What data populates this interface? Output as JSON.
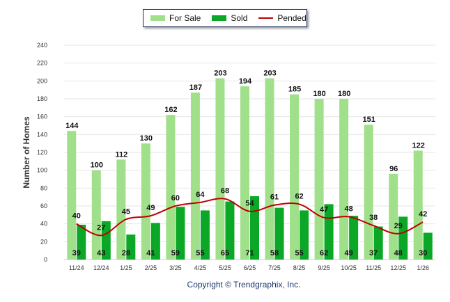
{
  "chart_data": {
    "type": "bar",
    "categories": [
      "11/24",
      "12/24",
      "1/25",
      "2/25",
      "3/25",
      "4/25",
      "5/25",
      "6/25",
      "7/25",
      "8/25",
      "9/25",
      "10/25",
      "11/25",
      "12/25",
      "1/26"
    ],
    "series": [
      {
        "name": "For Sale",
        "kind": "bar",
        "color": "#a0e08a",
        "values": [
          144,
          100,
          112,
          130,
          162,
          187,
          203,
          194,
          203,
          185,
          180,
          180,
          151,
          96,
          122
        ]
      },
      {
        "name": "Sold",
        "kind": "bar",
        "color": "#0aa826",
        "values": [
          39,
          43,
          28,
          41,
          59,
          55,
          65,
          71,
          58,
          55,
          62,
          49,
          37,
          48,
          30
        ]
      },
      {
        "name": "Pended",
        "kind": "line",
        "color": "#c00000",
        "values": [
          40,
          27,
          45,
          49,
          60,
          64,
          68,
          54,
          61,
          62,
          47,
          48,
          38,
          29,
          42
        ]
      }
    ],
    "ylabel": "Number of Homes",
    "xlabel": "",
    "ylim": [
      0,
      240
    ],
    "yticks": [
      0,
      20,
      40,
      60,
      80,
      100,
      120,
      140,
      160,
      180,
      200,
      220,
      240
    ],
    "grid": true,
    "legend_position": "top-center"
  },
  "footer": {
    "copyright": "Copyright © Trendgraphix, Inc."
  }
}
